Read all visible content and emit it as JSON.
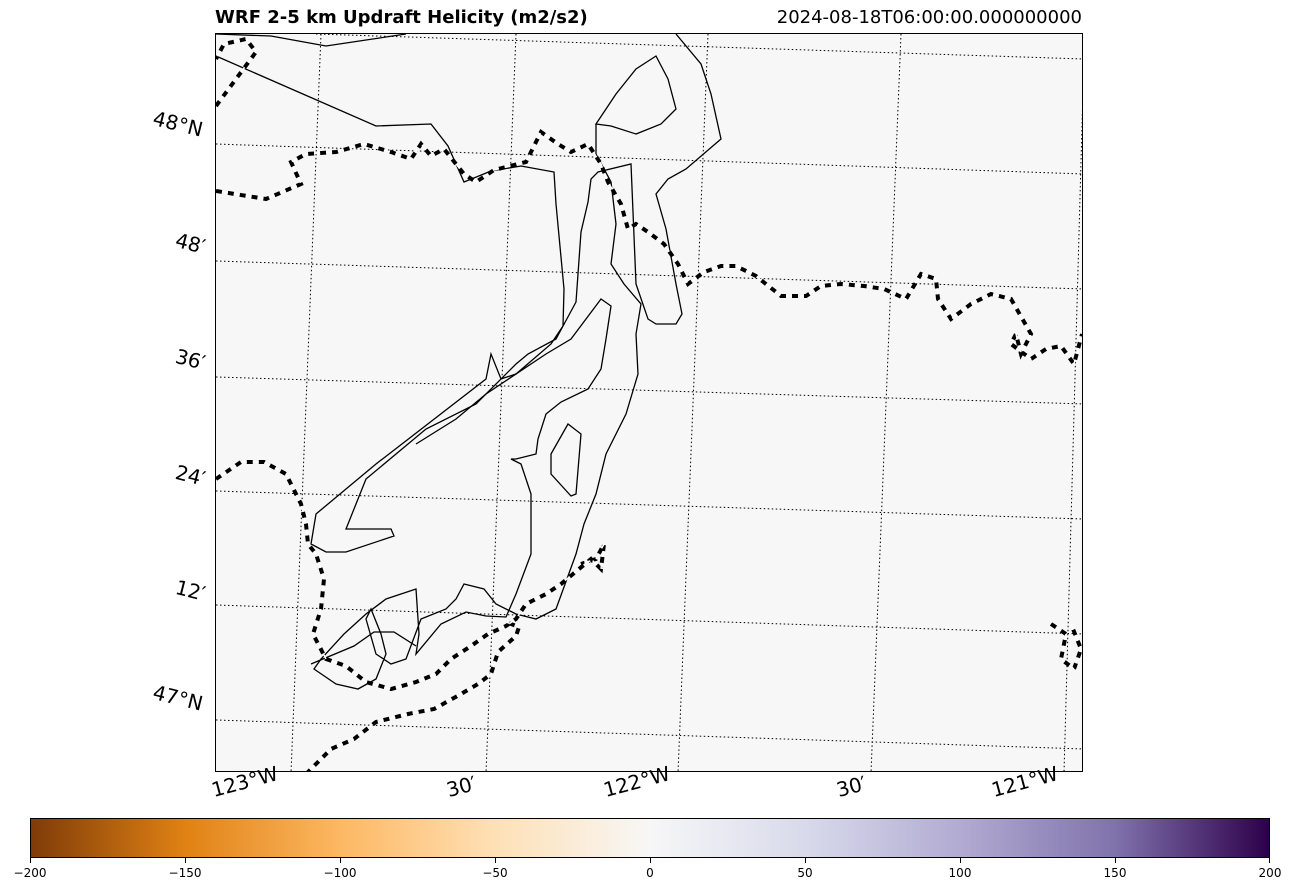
{
  "title": "WRF 2-5 km Updraft Helicity (m2/s2)",
  "timestamp": "2024-08-18T06:00:00.000000000",
  "lat_labels": [
    "48°N",
    "48′",
    "36′",
    "24′",
    "12′",
    "47°N"
  ],
  "lon_labels": [
    "123°W",
    "30′",
    "122°W",
    "30′",
    "121°W"
  ],
  "colorbar": {
    "ticks": [
      "−200",
      "−150",
      "−100",
      "−50",
      "0",
      "50",
      "100",
      "150",
      "200"
    ],
    "colors": [
      "#7f3b08",
      "#e08214",
      "#fdb863",
      "#fee0b6",
      "#f7f7f7",
      "#d8daeb",
      "#b2abd2",
      "#8073ac",
      "#2d004b"
    ]
  }
}
